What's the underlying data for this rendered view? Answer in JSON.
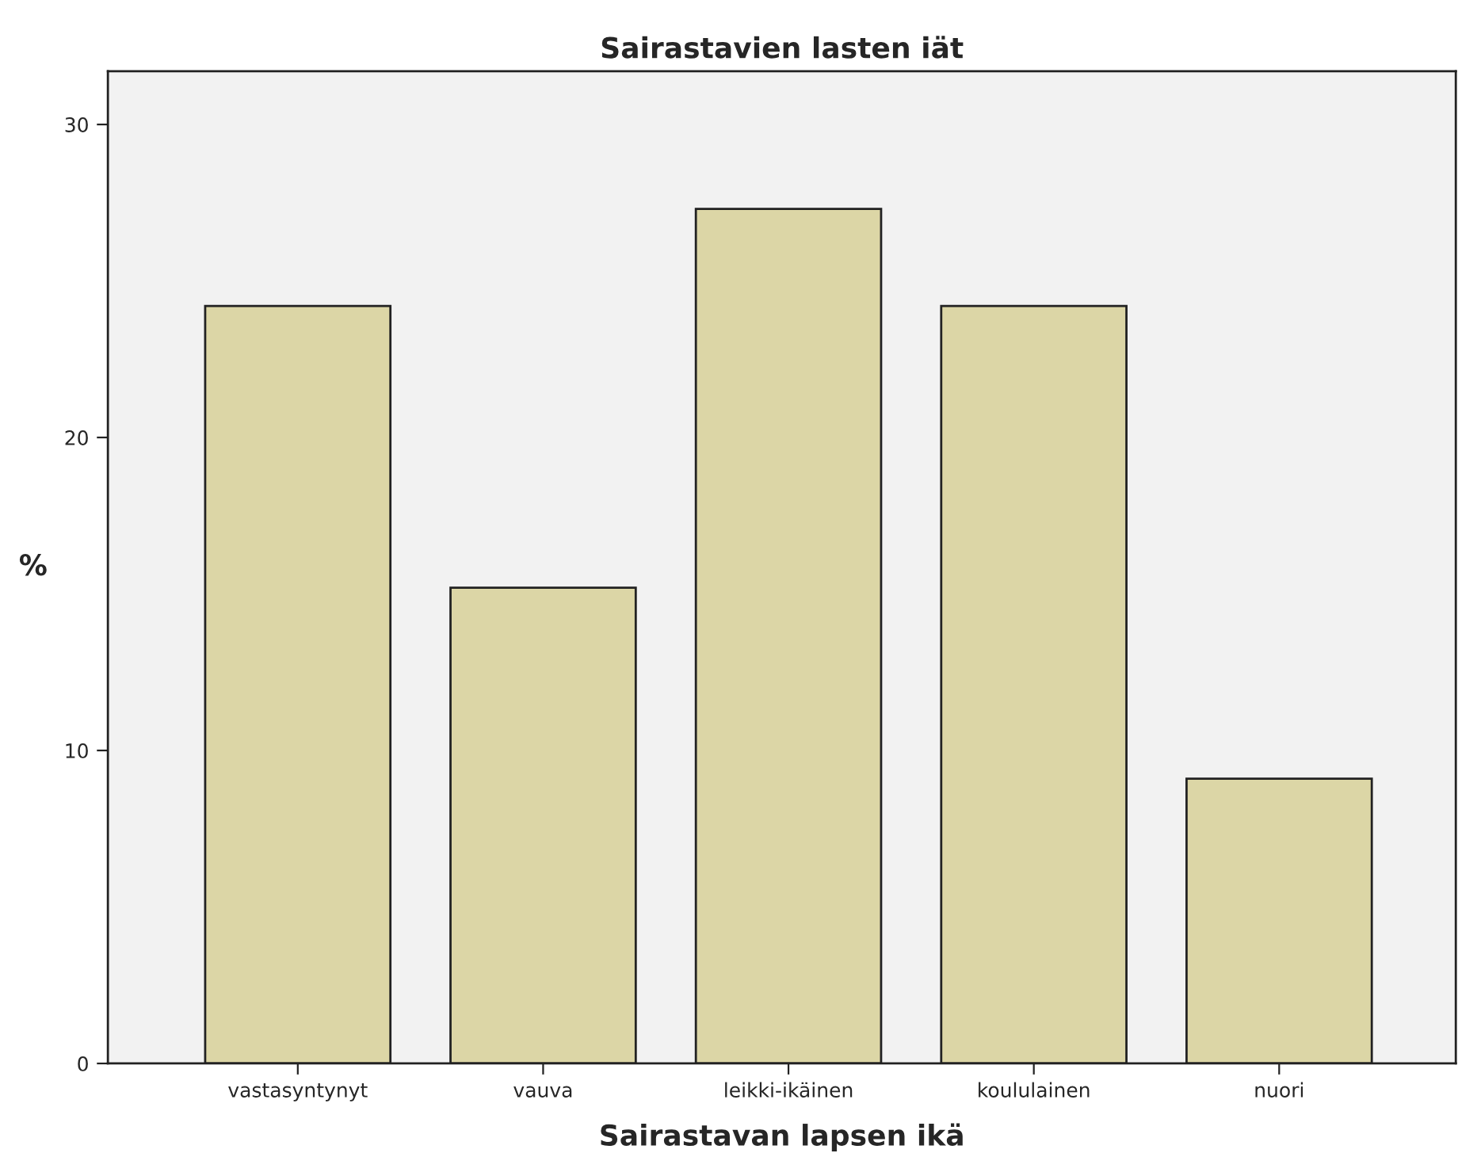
{
  "chart_data": {
    "type": "bar",
    "title": "Sairastavien lasten iät",
    "xlabel": "Sairastavan lapsen ikä",
    "ylabel": "%",
    "categories": [
      "vastasyntynyt",
      "vauva",
      "leikki-ikäinen",
      "koululainen",
      "nuori"
    ],
    "values": [
      24.2,
      15.2,
      27.3,
      24.2,
      9.1
    ],
    "color": "#dcd6a6",
    "ylim": [
      0,
      31.7
    ],
    "yticks": [
      0,
      10,
      20,
      30
    ],
    "grid": false
  }
}
